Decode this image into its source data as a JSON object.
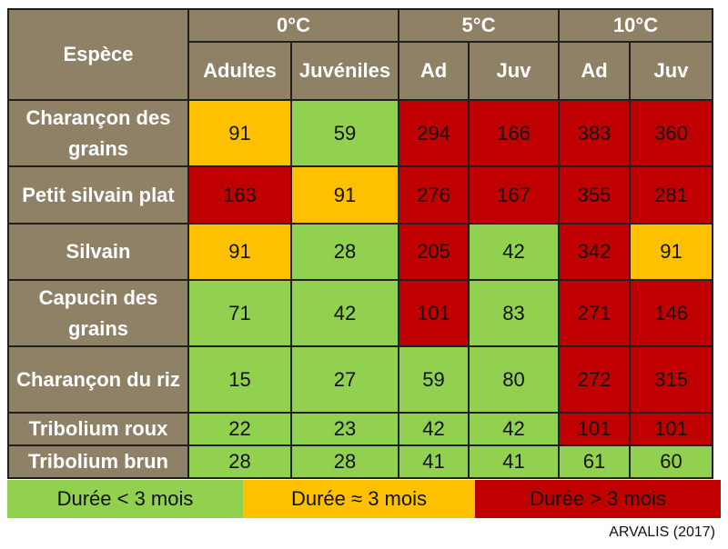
{
  "header": {
    "species": "Espèce",
    "temp_groups": [
      "0°C",
      "5°C",
      "10°C"
    ],
    "subcols": [
      "Adultes",
      "Juvéniles",
      "Ad",
      "Juv",
      "Ad",
      "Juv"
    ]
  },
  "rows": [
    {
      "name": "Charançon des grains",
      "values": [
        "91",
        "59",
        "294",
        "166",
        "383",
        "360"
      ]
    },
    {
      "name": "Petit silvain plat",
      "values": [
        "163",
        "91",
        "276",
        "167",
        "355",
        "281"
      ]
    },
    {
      "name": "Silvain",
      "values": [
        "91",
        "28",
        "205",
        "42",
        "342",
        "91"
      ]
    },
    {
      "name": "Capucin des grains",
      "values": [
        "71",
        "42",
        "101",
        "83",
        "271",
        "146"
      ]
    },
    {
      "name": "Charançon du riz",
      "values": [
        "15",
        "27",
        "59",
        "80",
        "272",
        "315"
      ]
    },
    {
      "name": "Tribolium roux",
      "values": [
        "22",
        "23",
        "42",
        "42",
        "101",
        "101"
      ]
    },
    {
      "name": "Tribolium brun",
      "values": [
        "28",
        "28",
        "41",
        "41",
        "61",
        "60"
      ]
    }
  ],
  "legend": {
    "green": "Durée < 3 mois",
    "orange": "Durée ≈ 3 mois",
    "red": "Durée > 3 mois"
  },
  "source": "ARVALIS (2017)",
  "colors": {
    "green": "#92d050",
    "orange": "#ffc000",
    "red": "#c00000",
    "header": "#8e8166"
  }
}
